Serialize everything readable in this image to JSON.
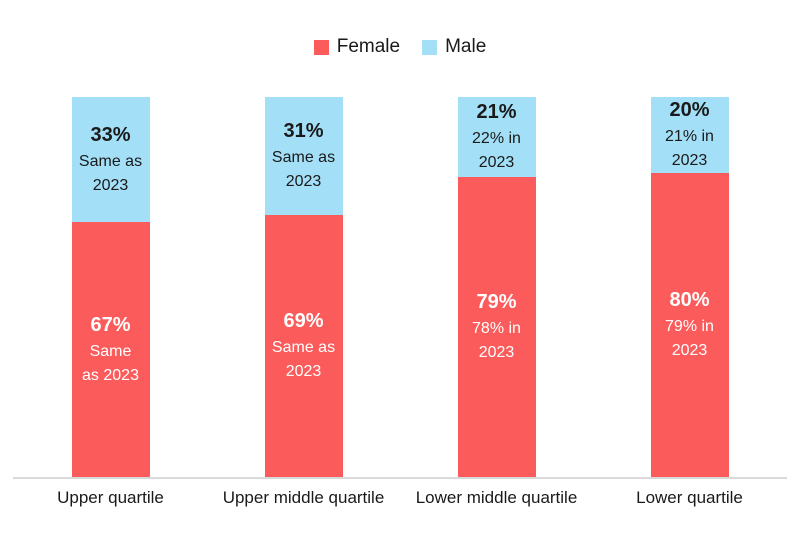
{
  "legend": {
    "items": [
      {
        "label": "Female",
        "color": "#fc5b5b"
      },
      {
        "label": "Male",
        "color": "#a3dff7"
      }
    ]
  },
  "colors": {
    "female": "#fc5b5b",
    "male": "#a3dff7",
    "axis_line": "#d9d9d9",
    "male_text": "#1a1a1a",
    "female_text": "#ffffff"
  },
  "chart_data": {
    "type": "bar",
    "stacked": true,
    "orientation": "vertical",
    "grid": false,
    "legend_position": "top",
    "ylim": [
      0,
      100
    ],
    "xlabel": "",
    "ylabel": "",
    "categories": [
      "Upper quartile",
      "Upper middle quartile",
      "Lower middle quartile",
      "Lower quartile"
    ],
    "series": [
      {
        "name": "Female",
        "color": "#fc5b5b",
        "values": [
          67,
          69,
          79,
          80
        ]
      },
      {
        "name": "Male",
        "color": "#a3dff7",
        "values": [
          33,
          31,
          21,
          20
        ]
      }
    ],
    "bars": [
      {
        "category": "Upper quartile",
        "male": {
          "value": 33,
          "pct_label": "33%",
          "note_line1": "Same as",
          "note_line2": "2023"
        },
        "female": {
          "value": 67,
          "pct_label": "67%",
          "note_line1": "Same",
          "note_line2": "as 2023"
        }
      },
      {
        "category": "Upper middle quartile",
        "male": {
          "value": 31,
          "pct_label": "31%",
          "note_line1": "Same as",
          "note_line2": "2023"
        },
        "female": {
          "value": 69,
          "pct_label": "69%",
          "note_line1": "Same as",
          "note_line2": "2023"
        }
      },
      {
        "category": "Lower middle quartile",
        "male": {
          "value": 21,
          "pct_label": "21%",
          "note_line1": "22% in",
          "note_line2": "2023"
        },
        "female": {
          "value": 79,
          "pct_label": "79%",
          "note_line1": "78% in",
          "note_line2": "2023"
        }
      },
      {
        "category": "Lower quartile",
        "male": {
          "value": 20,
          "pct_label": "20%",
          "note_line1": "21% in",
          "note_line2": "2023"
        },
        "female": {
          "value": 80,
          "pct_label": "80%",
          "note_line1": "79% in",
          "note_line2": "2023"
        }
      }
    ]
  }
}
